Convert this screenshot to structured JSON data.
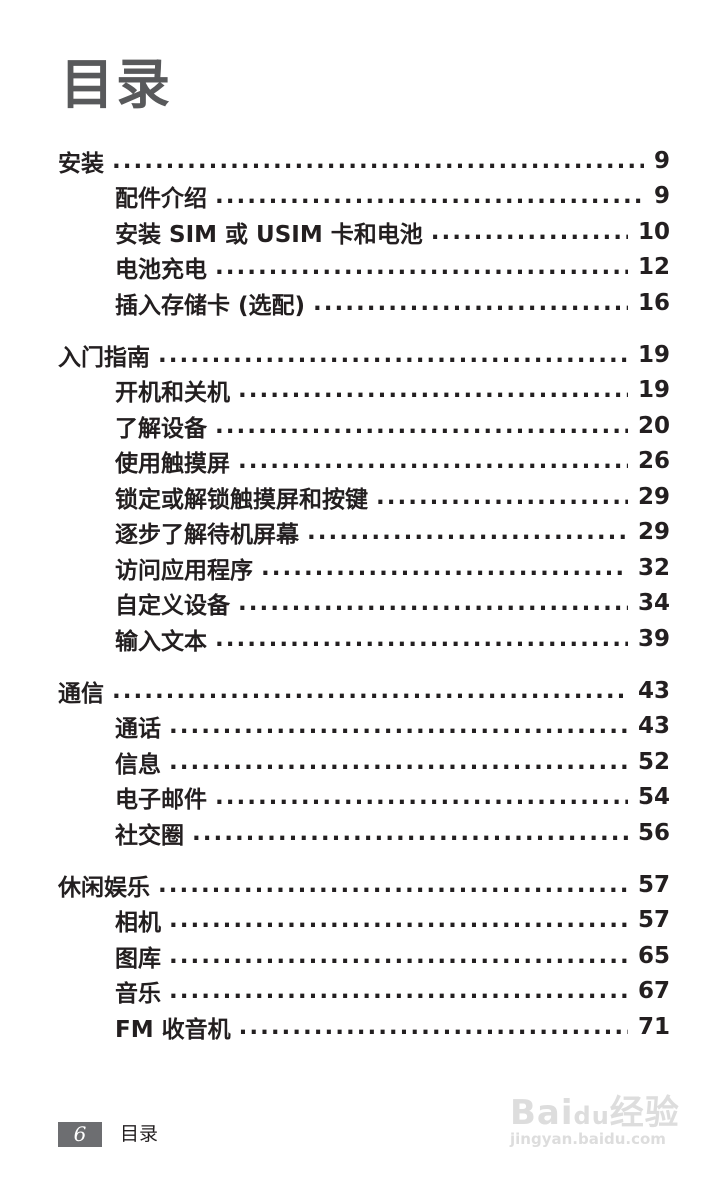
{
  "title": "目录",
  "groups": [
    {
      "items": [
        {
          "label": "安装",
          "page": "9"
        },
        {
          "label": "配件介绍",
          "page": "9"
        },
        {
          "label": "安装 SIM 或 USIM 卡和电池",
          "page": "10"
        },
        {
          "label": "电池充电",
          "page": "12"
        },
        {
          "label": "插入存储卡 (选配)",
          "page": "16"
        }
      ]
    },
    {
      "items": [
        {
          "label": "入门指南",
          "page": "19"
        },
        {
          "label": "开机和关机",
          "page": "19"
        },
        {
          "label": "了解设备",
          "page": "20"
        },
        {
          "label": "使用触摸屏",
          "page": "26"
        },
        {
          "label": "锁定或解锁触摸屏和按键",
          "page": "29"
        },
        {
          "label": "逐步了解待机屏幕",
          "page": "29"
        },
        {
          "label": "访问应用程序",
          "page": "32"
        },
        {
          "label": "自定义设备",
          "page": "34"
        },
        {
          "label": "输入文本",
          "page": "39"
        }
      ]
    },
    {
      "items": [
        {
          "label": "通信",
          "page": "43"
        },
        {
          "label": "通话",
          "page": "43"
        },
        {
          "label": "信息",
          "page": "52"
        },
        {
          "label": "电子邮件",
          "page": "54"
        },
        {
          "label": "社交圈",
          "page": "56"
        }
      ]
    },
    {
      "items": [
        {
          "label": "休闲娱乐",
          "page": "57"
        },
        {
          "label": "相机",
          "page": "57"
        },
        {
          "label": "图库",
          "page": "65"
        },
        {
          "label": "音乐",
          "page": "67"
        },
        {
          "label": "FM 收音机",
          "page": "71"
        }
      ]
    }
  ],
  "footer": {
    "page_number": "6",
    "section": "目录"
  },
  "watermark": {
    "logo": "Bai du 经验",
    "url": "jingyan.baidu.com"
  }
}
